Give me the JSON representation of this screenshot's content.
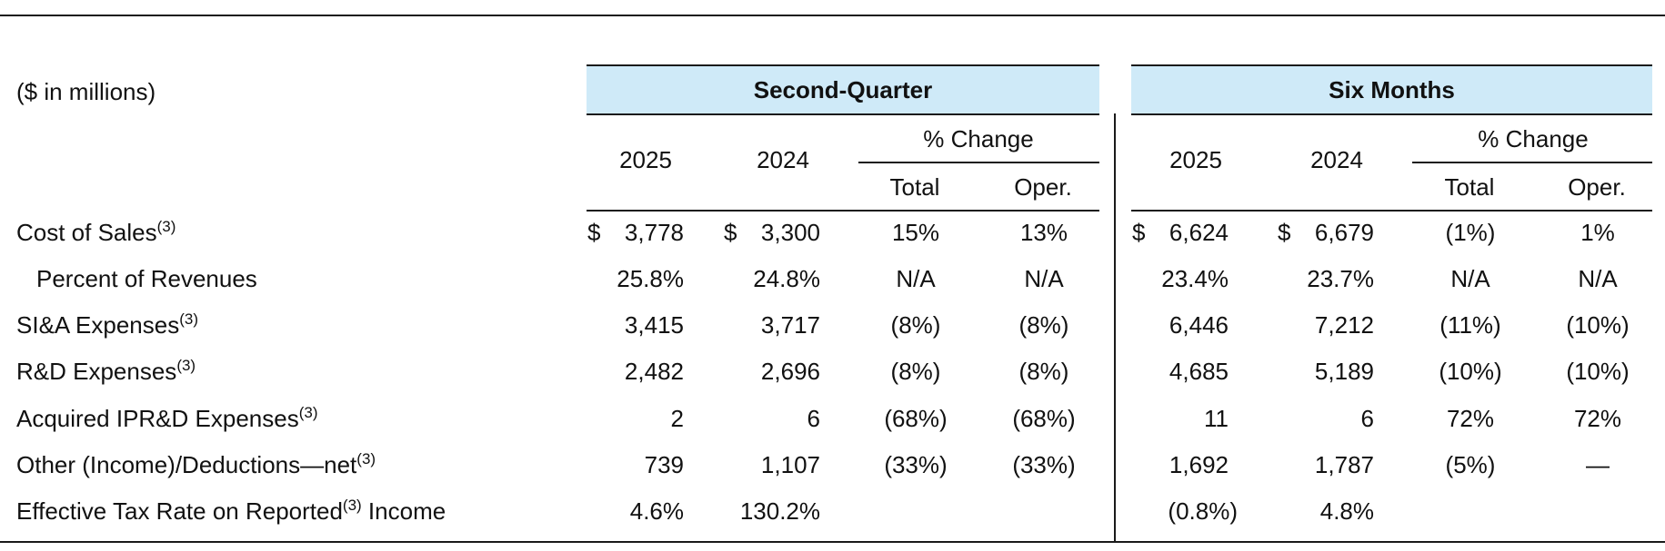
{
  "units_label": "($ in millions)",
  "groups": [
    {
      "title": "Second-Quarter",
      "years": [
        "2025",
        "2024"
      ],
      "change_label": "% Change",
      "change_cols": [
        "Total",
        "Oper."
      ]
    },
    {
      "title": "Six Months",
      "years": [
        "2025",
        "2024"
      ],
      "change_label": "% Change",
      "change_cols": [
        "Total",
        "Oper."
      ]
    }
  ],
  "rows": [
    {
      "label": "Cost of Sales",
      "label_after": "",
      "note": "(3)",
      "indent": false,
      "values": [
        {
          "cur": "$",
          "val": "3,778"
        },
        {
          "cur": "$",
          "val": "3,300"
        },
        {
          "val": "15%"
        },
        {
          "val": "13%"
        },
        {
          "cur": "$",
          "val": "6,624"
        },
        {
          "cur": "$",
          "val": "6,679"
        },
        {
          "val": "(1%)"
        },
        {
          "val": "1%"
        }
      ]
    },
    {
      "label": "Percent of Revenues",
      "label_after": "",
      "note": "",
      "indent": true,
      "values": [
        {
          "val": "25.8%"
        },
        {
          "val": "24.8%"
        },
        {
          "val": "N/A"
        },
        {
          "val": "N/A"
        },
        {
          "val": "23.4%"
        },
        {
          "val": "23.7%"
        },
        {
          "val": "N/A"
        },
        {
          "val": "N/A"
        }
      ]
    },
    {
      "label": "SI&A Expenses",
      "label_after": "",
      "note": "(3)",
      "indent": false,
      "values": [
        {
          "val": "3,415"
        },
        {
          "val": "3,717"
        },
        {
          "val": "(8%)"
        },
        {
          "val": "(8%)"
        },
        {
          "val": "6,446"
        },
        {
          "val": "7,212"
        },
        {
          "val": "(11%)"
        },
        {
          "val": "(10%)"
        }
      ]
    },
    {
      "label": "R&D Expenses",
      "label_after": "",
      "note": "(3)",
      "indent": false,
      "values": [
        {
          "val": "2,482"
        },
        {
          "val": "2,696"
        },
        {
          "val": "(8%)"
        },
        {
          "val": "(8%)"
        },
        {
          "val": "4,685"
        },
        {
          "val": "5,189"
        },
        {
          "val": "(10%)"
        },
        {
          "val": "(10%)"
        }
      ]
    },
    {
      "label": "Acquired IPR&D Expenses",
      "label_after": "",
      "note": "(3)",
      "indent": false,
      "values": [
        {
          "val": "2"
        },
        {
          "val": "6"
        },
        {
          "val": "(68%)"
        },
        {
          "val": "(68%)"
        },
        {
          "val": "11"
        },
        {
          "val": "6"
        },
        {
          "val": "72%"
        },
        {
          "val": "72%"
        }
      ]
    },
    {
      "label": "Other (Income)/Deductions—net",
      "label_after": "",
      "note": "(3)",
      "indent": false,
      "values": [
        {
          "val": "739"
        },
        {
          "val": "1,107"
        },
        {
          "val": "(33%)"
        },
        {
          "val": "(33%)"
        },
        {
          "val": "1,692"
        },
        {
          "val": "1,787"
        },
        {
          "val": "(5%)"
        },
        {
          "val": "—"
        }
      ]
    },
    {
      "label": "Effective Tax Rate on Reported",
      "label_after": " Income",
      "note": "(3)",
      "indent": false,
      "values": [
        {
          "val": "4.6%"
        },
        {
          "val": "130.2%"
        },
        {
          "val": ""
        },
        {
          "val": ""
        },
        {
          "val": "(0.8%)"
        },
        {
          "val": "4.8%"
        },
        {
          "val": ""
        },
        {
          "val": ""
        }
      ]
    }
  ],
  "colors": {
    "header_band": "#cfeaf8",
    "rule": "#1a1a1a"
  }
}
